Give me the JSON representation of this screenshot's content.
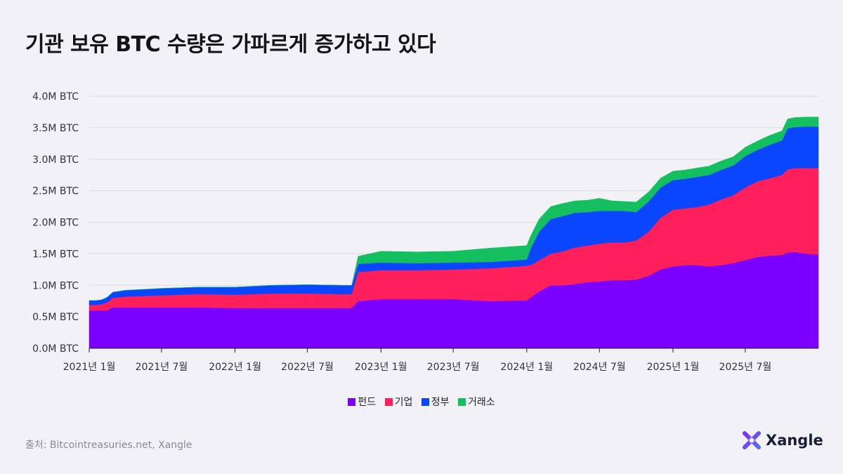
{
  "title": "기관 보유 BTC 수량은 가파르게 증가하고 있다",
  "source": "출처: Bitcointreasuries.net, Xangle",
  "brand": {
    "name": "Xangle",
    "colors": [
      "#7b2ff7",
      "#5a6bff"
    ]
  },
  "chart_data": {
    "type": "area",
    "stacked": true,
    "title": "기관 보유 BTC 수량은 가파르게 증가하고 있다",
    "xlabel": "",
    "ylabel": "",
    "y_unit": "M BTC",
    "ylim": [
      0,
      4.0
    ],
    "y_ticks": [
      0,
      0.5,
      1.0,
      1.5,
      2.0,
      2.5,
      3.0,
      3.5,
      4.0
    ],
    "y_tick_labels": [
      "0.0M BTC",
      "0.5M BTC",
      "1.0M BTC",
      "1.5M BTC",
      "2.0M BTC",
      "2.5M BTC",
      "3.0M BTC",
      "3.5M BTC",
      "4.0M BTC"
    ],
    "x_range": [
      "2021-01-01",
      "2025-12-31"
    ],
    "x_ticks": [
      "2021-01",
      "2021-07",
      "2022-01",
      "2022-07",
      "2023-01",
      "2023-07",
      "2024-01",
      "2024-07",
      "2025-01",
      "2025-07"
    ],
    "x_tick_labels": [
      "2021년 1월",
      "2021년 7월",
      "2022년 1월",
      "2022년 7월",
      "2023년 1월",
      "2023년 7월",
      "2024년 1월",
      "2024년 7월",
      "2025년 1월",
      "2025년 7월"
    ],
    "grid": "horizontal",
    "legend_position": "bottom-center",
    "x": [
      "2021-01-01",
      "2021-01-20",
      "2021-02-01",
      "2021-02-15",
      "2021-03-01",
      "2021-04-01",
      "2021-07-01",
      "2021-10-01",
      "2022-01-01",
      "2022-04-01",
      "2022-07-01",
      "2022-10-01",
      "2022-10-20",
      "2022-11-05",
      "2023-01-01",
      "2023-04-01",
      "2023-07-01",
      "2023-10-01",
      "2024-01-01",
      "2024-01-10",
      "2024-01-20",
      "2024-02-01",
      "2024-03-01",
      "2024-04-01",
      "2024-05-01",
      "2024-06-01",
      "2024-07-01",
      "2024-08-01",
      "2024-09-01",
      "2024-10-01",
      "2024-11-01",
      "2024-12-01",
      "2025-01-01",
      "2025-02-01",
      "2025-03-01",
      "2025-04-01",
      "2025-05-01",
      "2025-06-01",
      "2025-07-01",
      "2025-08-01",
      "2025-09-01",
      "2025-10-01",
      "2025-10-15",
      "2025-11-01",
      "2025-12-01",
      "2025-12-31"
    ],
    "series": [
      {
        "name": "펀드",
        "color": "#7b00ff",
        "values": [
          0.6,
          0.6,
          0.6,
          0.6,
          0.65,
          0.65,
          0.65,
          0.65,
          0.64,
          0.64,
          0.64,
          0.64,
          0.64,
          0.75,
          0.78,
          0.78,
          0.78,
          0.75,
          0.76,
          0.8,
          0.85,
          0.9,
          1.0,
          1.0,
          1.02,
          1.05,
          1.06,
          1.08,
          1.08,
          1.09,
          1.15,
          1.25,
          1.3,
          1.32,
          1.32,
          1.3,
          1.32,
          1.35,
          1.4,
          1.45,
          1.47,
          1.48,
          1.52,
          1.53,
          1.5,
          1.49
        ]
      },
      {
        "name": "기업",
        "color": "#ff1f5b",
        "values": [
          0.09,
          0.09,
          0.1,
          0.13,
          0.15,
          0.17,
          0.19,
          0.21,
          0.21,
          0.23,
          0.23,
          0.22,
          0.22,
          0.46,
          0.46,
          0.46,
          0.47,
          0.52,
          0.55,
          0.52,
          0.5,
          0.5,
          0.5,
          0.54,
          0.58,
          0.58,
          0.6,
          0.6,
          0.6,
          0.62,
          0.7,
          0.82,
          0.9,
          0.9,
          0.92,
          0.98,
          1.04,
          1.08,
          1.15,
          1.2,
          1.23,
          1.27,
          1.32,
          1.33,
          1.36,
          1.37
        ]
      },
      {
        "name": "정부",
        "color": "#0a45ff",
        "values": [
          0.07,
          0.07,
          0.07,
          0.08,
          0.09,
          0.1,
          0.11,
          0.11,
          0.12,
          0.13,
          0.14,
          0.14,
          0.14,
          0.13,
          0.12,
          0.11,
          0.11,
          0.1,
          0.1,
          0.25,
          0.35,
          0.45,
          0.55,
          0.56,
          0.55,
          0.53,
          0.52,
          0.5,
          0.5,
          0.45,
          0.48,
          0.48,
          0.47,
          0.47,
          0.48,
          0.47,
          0.47,
          0.47,
          0.5,
          0.5,
          0.53,
          0.55,
          0.65,
          0.65,
          0.66,
          0.66
        ]
      },
      {
        "name": "거래소",
        "color": "#13bf5f",
        "values": [
          0,
          0,
          0,
          0,
          0,
          0,
          0,
          0,
          0,
          0,
          0,
          0,
          0,
          0.12,
          0.18,
          0.18,
          0.18,
          0.22,
          0.22,
          0.2,
          0.2,
          0.2,
          0.2,
          0.2,
          0.19,
          0.19,
          0.2,
          0.16,
          0.15,
          0.16,
          0.15,
          0.15,
          0.14,
          0.14,
          0.14,
          0.14,
          0.14,
          0.14,
          0.14,
          0.14,
          0.15,
          0.15,
          0.15,
          0.15,
          0.15,
          0.15
        ]
      }
    ]
  }
}
